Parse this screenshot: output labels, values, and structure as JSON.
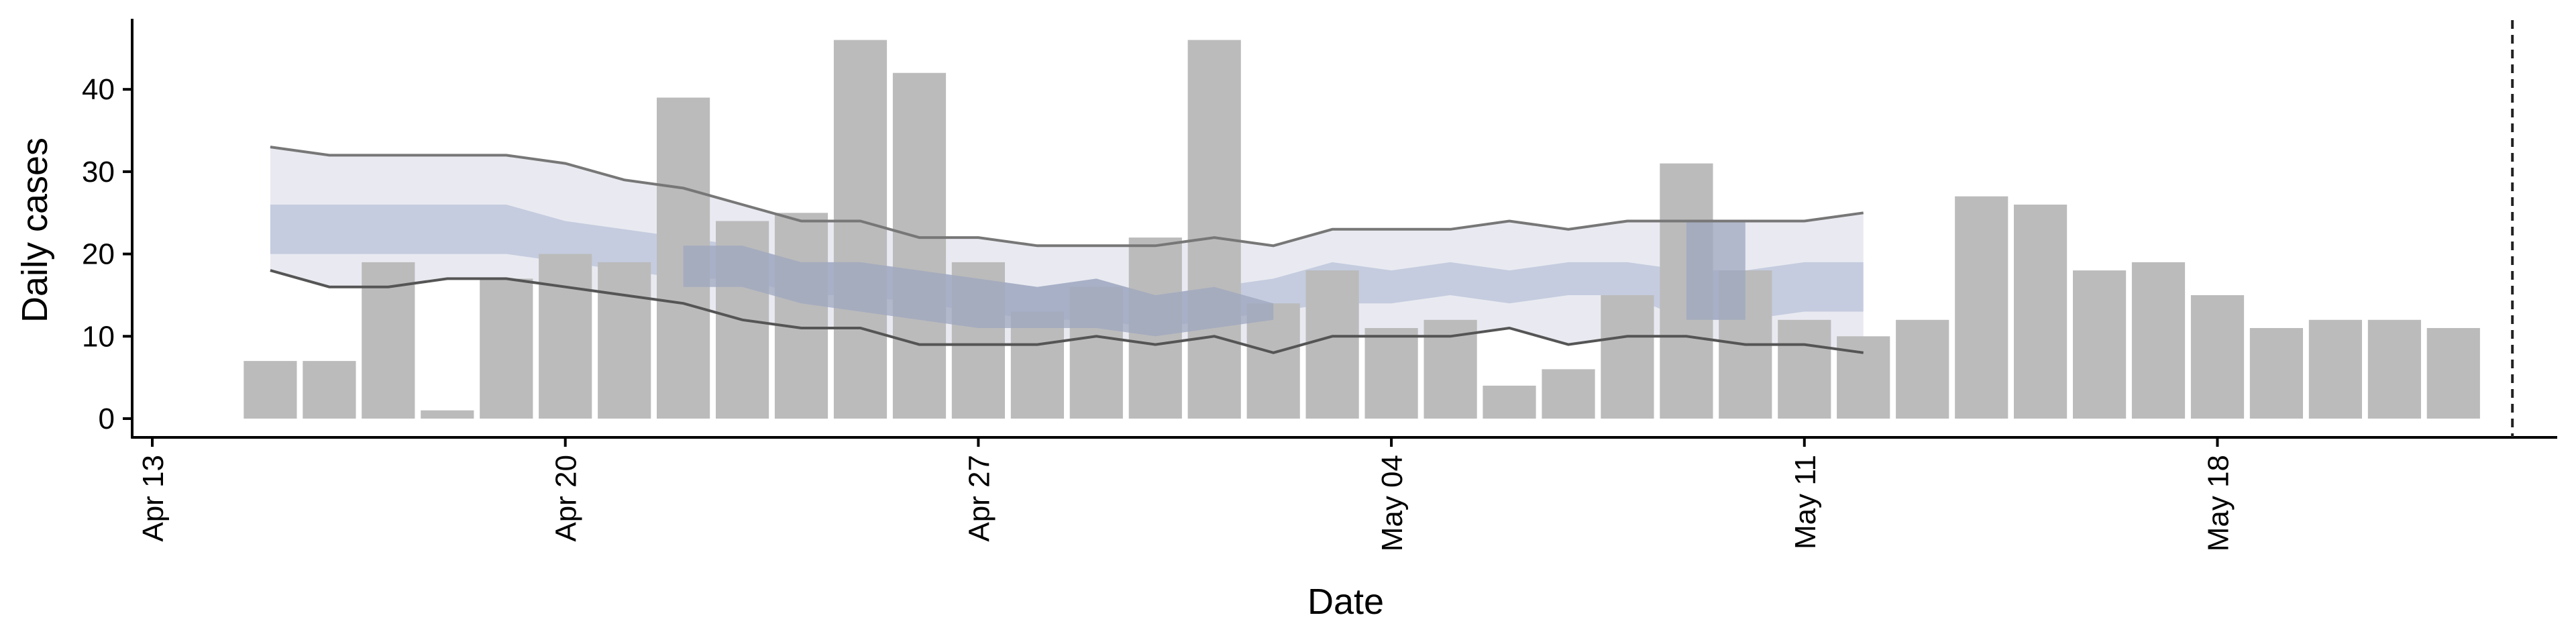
{
  "chart_data": {
    "type": "bar",
    "xlabel": "Date",
    "ylabel": "Daily cases",
    "ylim": [
      0,
      48
    ],
    "y_ticks": [
      0,
      10,
      20,
      30,
      40
    ],
    "x_range": [
      "2020-04-13",
      "2020-05-23"
    ],
    "x_ticks": [
      {
        "date": "2020-04-13",
        "label": "Apr 13"
      },
      {
        "date": "2020-04-20",
        "label": "Apr 20"
      },
      {
        "date": "2020-04-27",
        "label": "Apr 27"
      },
      {
        "date": "2020-05-04",
        "label": "May 04"
      },
      {
        "date": "2020-05-11",
        "label": "May 11"
      },
      {
        "date": "2020-05-18",
        "label": "May 18"
      }
    ],
    "grid": false,
    "colors": {
      "bars": "#bbbbbb",
      "band_outer": "#e9eaf1",
      "band_inner": "#c5ccdf",
      "overlap_dark": "#9ea7bf",
      "line_upper": "#777777",
      "line_lower": "#555555",
      "cutoff_line": "#222222",
      "axis": "#000000"
    },
    "bars": {
      "dates": [
        "2020-04-15",
        "2020-04-16",
        "2020-04-17",
        "2020-04-18",
        "2020-04-19",
        "2020-04-20",
        "2020-04-21",
        "2020-04-22",
        "2020-04-23",
        "2020-04-24",
        "2020-04-25",
        "2020-04-26",
        "2020-04-27",
        "2020-04-28",
        "2020-04-29",
        "2020-04-30",
        "2020-05-01",
        "2020-05-02",
        "2020-05-03",
        "2020-05-04",
        "2020-05-05",
        "2020-05-06",
        "2020-05-07",
        "2020-05-08",
        "2020-05-09",
        "2020-05-10",
        "2020-05-11",
        "2020-05-12",
        "2020-05-13",
        "2020-05-14",
        "2020-05-15",
        "2020-05-16",
        "2020-05-17",
        "2020-05-18",
        "2020-05-19",
        "2020-05-20",
        "2020-05-21",
        "2020-05-22"
      ],
      "values": [
        7,
        7,
        19,
        1,
        17,
        20,
        19,
        39,
        24,
        25,
        46,
        42,
        19,
        13,
        16,
        22,
        46,
        14,
        18,
        11,
        12,
        4,
        6,
        15,
        31,
        18,
        12,
        10,
        12,
        27,
        26,
        18,
        19,
        15,
        11,
        12,
        12,
        11
      ]
    },
    "ribbons": {
      "dates": [
        "2020-04-15",
        "2020-04-16",
        "2020-04-17",
        "2020-04-18",
        "2020-04-19",
        "2020-04-20",
        "2020-04-21",
        "2020-04-22",
        "2020-04-23",
        "2020-04-24",
        "2020-04-25",
        "2020-04-26",
        "2020-04-27",
        "2020-04-28",
        "2020-04-29",
        "2020-04-30",
        "2020-05-01",
        "2020-05-02",
        "2020-05-03",
        "2020-05-04",
        "2020-05-05",
        "2020-05-06",
        "2020-05-07",
        "2020-05-08",
        "2020-05-09",
        "2020-05-10",
        "2020-05-11",
        "2020-05-12"
      ],
      "outer_upper": [
        33,
        32,
        32,
        32,
        32,
        31,
        29,
        28,
        26,
        24,
        24,
        22,
        22,
        21,
        21,
        21,
        22,
        21,
        23,
        23,
        23,
        24,
        23,
        24,
        24,
        24,
        24,
        25
      ],
      "outer_lower": [
        18,
        16,
        16,
        17,
        17,
        16,
        15,
        14,
        12,
        11,
        11,
        9,
        9,
        9,
        10,
        9,
        10,
        8,
        10,
        10,
        10,
        11,
        9,
        10,
        10,
        9,
        9,
        8
      ],
      "inner_upper": [
        26,
        26,
        26,
        26,
        26,
        24,
        23,
        22,
        21,
        19,
        19,
        18,
        17,
        16,
        17,
        15,
        16,
        17,
        19,
        18,
        19,
        18,
        19,
        19,
        18,
        18,
        19,
        19
      ],
      "inner_lower": [
        20,
        20,
        20,
        20,
        20,
        19,
        18,
        17,
        17,
        15,
        15,
        14,
        13,
        12,
        12,
        11,
        12,
        13,
        14,
        14,
        15,
        14,
        15,
        15,
        12,
        12,
        13,
        13
      ],
      "dark_upper": [
        null,
        null,
        null,
        null,
        null,
        null,
        null,
        21,
        21,
        19,
        19,
        18,
        17,
        16,
        17,
        15,
        16,
        14,
        null,
        null,
        null,
        null,
        null,
        null,
        24,
        24,
        null,
        null
      ],
      "dark_lower": [
        null,
        null,
        null,
        null,
        null,
        null,
        null,
        16,
        16,
        14,
        13,
        12,
        11,
        11,
        11,
        10,
        11,
        12,
        null,
        null,
        null,
        null,
        null,
        null,
        12,
        12,
        null,
        null
      ]
    },
    "cutoff_date": "2020-05-23"
  }
}
